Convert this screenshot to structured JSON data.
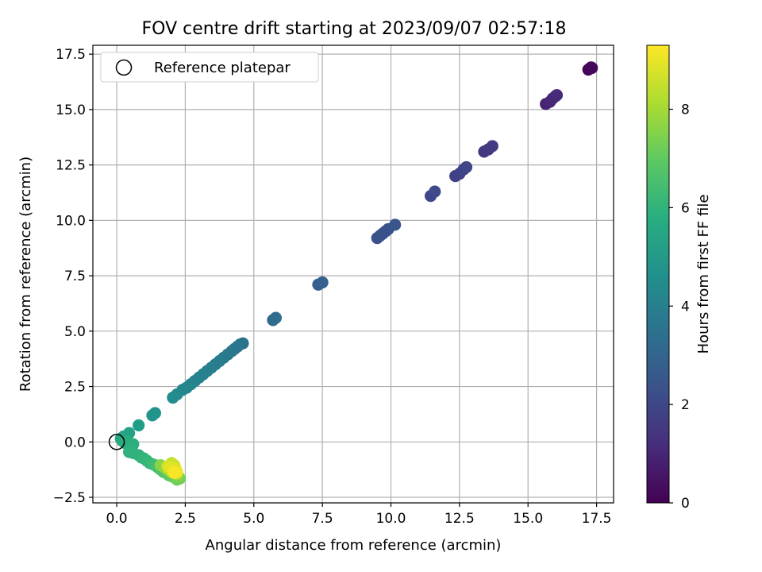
{
  "chart_data": {
    "type": "scatter",
    "title": "FOV centre drift starting at 2023/09/07 02:57:18",
    "xlabel": "Angular distance from reference (arcmin)",
    "ylabel": "Rotation from reference (arcmin)",
    "xlim": [
      -0.87,
      18.12
    ],
    "ylim": [
      -2.75,
      17.9
    ],
    "xticks": [
      "0.0",
      "2.5",
      "5.0",
      "7.5",
      "10.0",
      "12.5",
      "15.0",
      "17.5"
    ],
    "xtick_values": [
      0,
      2.5,
      5,
      7.5,
      10,
      12.5,
      15,
      17.5
    ],
    "yticks": [
      "−2.5",
      "0.0",
      "2.5",
      "5.0",
      "7.5",
      "10.0",
      "12.5",
      "15.0",
      "17.5"
    ],
    "ytick_values": [
      -2.5,
      0,
      2.5,
      5,
      7.5,
      10,
      12.5,
      15,
      17.5
    ],
    "grid": true,
    "legend": {
      "placement": "top-left",
      "entries": [
        {
          "label": "Reference platepar",
          "marker": "open-circle"
        }
      ]
    },
    "reference_point": {
      "x": 0,
      "y": 0
    },
    "colorbar": {
      "label": "Hours from first FF file",
      "range": [
        0,
        9.3
      ],
      "ticks": [
        "0",
        "2",
        "4",
        "6",
        "8"
      ],
      "tick_values": [
        0,
        2,
        4,
        6,
        8
      ],
      "colormap": "viridis"
    },
    "series": [
      {
        "columns": [
          "x",
          "y",
          "hours"
        ],
        "points": [
          [
            17.2,
            16.8,
            0.05
          ],
          [
            17.25,
            16.85,
            0.1
          ],
          [
            17.3,
            16.9,
            0.15
          ],
          [
            17.33,
            16.88,
            0.2
          ],
          [
            15.65,
            15.25,
            0.9
          ],
          [
            15.8,
            15.35,
            0.95
          ],
          [
            15.9,
            15.5,
            1.0
          ],
          [
            16.0,
            15.6,
            1.05
          ],
          [
            16.05,
            15.65,
            1.1
          ],
          [
            13.4,
            13.1,
            1.5
          ],
          [
            13.55,
            13.2,
            1.55
          ],
          [
            13.7,
            13.35,
            1.6
          ],
          [
            12.35,
            12.0,
            1.8
          ],
          [
            12.5,
            12.1,
            1.85
          ],
          [
            12.65,
            12.3,
            1.9
          ],
          [
            12.75,
            12.4,
            1.95
          ],
          [
            11.45,
            11.1,
            2.05
          ],
          [
            11.6,
            11.3,
            2.1
          ],
          [
            9.5,
            9.2,
            2.3
          ],
          [
            9.6,
            9.3,
            2.32
          ],
          [
            9.7,
            9.4,
            2.34
          ],
          [
            9.8,
            9.5,
            2.36
          ],
          [
            9.9,
            9.6,
            2.38
          ],
          [
            10.15,
            9.8,
            2.45
          ],
          [
            7.35,
            7.1,
            2.8
          ],
          [
            7.5,
            7.2,
            2.85
          ],
          [
            5.7,
            5.5,
            3.2
          ],
          [
            5.8,
            5.6,
            3.25
          ],
          [
            4.6,
            4.45,
            3.5
          ],
          [
            4.5,
            4.4,
            3.55
          ],
          [
            4.4,
            4.3,
            3.6
          ],
          [
            4.3,
            4.2,
            3.65
          ],
          [
            4.2,
            4.1,
            3.7
          ],
          [
            4.05,
            3.95,
            3.75
          ],
          [
            3.9,
            3.8,
            3.8
          ],
          [
            3.75,
            3.65,
            3.85
          ],
          [
            3.6,
            3.5,
            3.9
          ],
          [
            3.45,
            3.35,
            3.95
          ],
          [
            3.3,
            3.2,
            4.0
          ],
          [
            3.15,
            3.05,
            4.05
          ],
          [
            3.0,
            2.9,
            4.1
          ],
          [
            2.85,
            2.75,
            4.15
          ],
          [
            2.7,
            2.6,
            4.2
          ],
          [
            2.55,
            2.45,
            4.25
          ],
          [
            2.4,
            2.35,
            4.3
          ],
          [
            2.2,
            2.15,
            4.4
          ],
          [
            2.05,
            2.0,
            4.5
          ],
          [
            1.4,
            1.3,
            4.8
          ],
          [
            1.3,
            1.2,
            4.85
          ],
          [
            0.8,
            0.75,
            5.2
          ],
          [
            0.45,
            0.4,
            5.35
          ],
          [
            0.25,
            0.25,
            5.45
          ],
          [
            0.15,
            0.15,
            5.5
          ],
          [
            0.2,
            0.05,
            5.6
          ],
          [
            0.3,
            -0.05,
            5.7
          ],
          [
            0.4,
            0.0,
            5.75
          ],
          [
            0.6,
            -0.1,
            5.8
          ],
          [
            0.55,
            -0.3,
            5.85
          ],
          [
            0.45,
            -0.45,
            5.9
          ],
          [
            0.6,
            -0.5,
            5.95
          ],
          [
            0.8,
            -0.6,
            6.0
          ],
          [
            0.9,
            -0.7,
            6.05
          ],
          [
            1.0,
            -0.75,
            6.1
          ],
          [
            1.1,
            -0.85,
            6.15
          ],
          [
            1.2,
            -0.95,
            6.2
          ],
          [
            1.3,
            -1.0,
            6.3
          ],
          [
            1.4,
            -1.05,
            6.4
          ],
          [
            1.5,
            -1.15,
            6.5
          ],
          [
            1.6,
            -1.25,
            6.6
          ],
          [
            1.7,
            -1.35,
            6.7
          ],
          [
            1.8,
            -1.4,
            6.8
          ],
          [
            1.9,
            -1.5,
            6.9
          ],
          [
            2.0,
            -1.55,
            7.0
          ],
          [
            2.1,
            -1.6,
            7.1
          ],
          [
            2.2,
            -1.7,
            7.2
          ],
          [
            2.3,
            -1.65,
            7.3
          ],
          [
            2.25,
            -1.55,
            7.4
          ],
          [
            1.6,
            -1.05,
            7.6
          ],
          [
            1.75,
            -1.15,
            7.7
          ],
          [
            1.95,
            -1.1,
            7.8
          ],
          [
            2.05,
            -1.2,
            7.9
          ],
          [
            2.15,
            -1.3,
            8.0
          ],
          [
            2.2,
            -1.45,
            8.1
          ],
          [
            2.0,
            -1.35,
            8.2
          ],
          [
            1.9,
            -1.25,
            8.3
          ],
          [
            2.0,
            -0.95,
            8.5
          ],
          [
            2.1,
            -1.05,
            8.6
          ],
          [
            1.85,
            -1.1,
            8.7
          ],
          [
            2.15,
            -1.2,
            8.8
          ],
          [
            1.95,
            -1.15,
            8.9
          ],
          [
            2.05,
            -1.3,
            9.0
          ],
          [
            2.2,
            -1.35,
            9.1
          ],
          [
            2.1,
            -1.4,
            9.2
          ]
        ]
      }
    ]
  }
}
